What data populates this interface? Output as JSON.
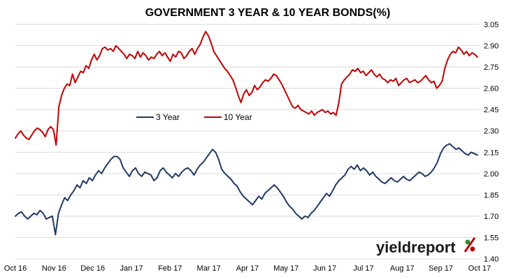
{
  "chart_data": {
    "type": "line",
    "title": "GOVERNMENT 3 YEAR & 10 YEAR BONDS(%)",
    "xlabel": "",
    "ylabel": "",
    "ylim": [
      1.4,
      3.05
    ],
    "y_ticks": [
      "1.40",
      "1.55",
      "1.70",
      "1.85",
      "2.00",
      "2.15",
      "2.30",
      "2.45",
      "2.60",
      "2.75",
      "2.90",
      "3.05"
    ],
    "x_ticks": [
      "Oct 16",
      "Nov 16",
      "Dec 16",
      "Jan 17",
      "Feb 17",
      "Mar 17",
      "Apr 17",
      "May 17",
      "Jun 17",
      "Jul 17",
      "Aug 17",
      "Sep 17",
      "Oct 17"
    ],
    "grid": "horizontal",
    "legend_position": "center-left",
    "series": [
      {
        "name": "10 Year",
        "color": "#c00000",
        "values": [
          2.25,
          2.28,
          2.3,
          2.27,
          2.25,
          2.24,
          2.27,
          2.3,
          2.32,
          2.31,
          2.29,
          2.26,
          2.31,
          2.33,
          2.31,
          2.2,
          2.47,
          2.55,
          2.6,
          2.63,
          2.62,
          2.7,
          2.64,
          2.68,
          2.72,
          2.71,
          2.76,
          2.74,
          2.8,
          2.84,
          2.8,
          2.83,
          2.88,
          2.89,
          2.87,
          2.88,
          2.86,
          2.9,
          2.88,
          2.86,
          2.84,
          2.81,
          2.84,
          2.83,
          2.81,
          2.86,
          2.82,
          2.85,
          2.83,
          2.8,
          2.82,
          2.81,
          2.84,
          2.86,
          2.83,
          2.85,
          2.82,
          2.79,
          2.84,
          2.82,
          2.86,
          2.85,
          2.81,
          2.83,
          2.86,
          2.88,
          2.84,
          2.88,
          2.91,
          2.96,
          3.0,
          2.97,
          2.92,
          2.86,
          2.83,
          2.8,
          2.77,
          2.74,
          2.72,
          2.69,
          2.66,
          2.61,
          2.55,
          2.5,
          2.56,
          2.59,
          2.55,
          2.57,
          2.62,
          2.59,
          2.61,
          2.64,
          2.66,
          2.65,
          2.67,
          2.7,
          2.69,
          2.66,
          2.63,
          2.59,
          2.55,
          2.51,
          2.47,
          2.46,
          2.48,
          2.45,
          2.44,
          2.43,
          2.42,
          2.44,
          2.41,
          2.43,
          2.44,
          2.45,
          2.43,
          2.44,
          2.42,
          2.43,
          2.41,
          2.5,
          2.63,
          2.66,
          2.68,
          2.7,
          2.73,
          2.72,
          2.74,
          2.71,
          2.72,
          2.69,
          2.71,
          2.73,
          2.7,
          2.68,
          2.7,
          2.67,
          2.66,
          2.64,
          2.66,
          2.65,
          2.67,
          2.62,
          2.64,
          2.66,
          2.67,
          2.64,
          2.65,
          2.66,
          2.64,
          2.65,
          2.67,
          2.69,
          2.66,
          2.64,
          2.65,
          2.6,
          2.62,
          2.65,
          2.74,
          2.8,
          2.84,
          2.86,
          2.85,
          2.89,
          2.87,
          2.84,
          2.86,
          2.83,
          2.85,
          2.84,
          2.82
        ]
      },
      {
        "name": "3 Year",
        "color": "#1f3864",
        "values": [
          1.7,
          1.72,
          1.73,
          1.7,
          1.68,
          1.7,
          1.72,
          1.71,
          1.74,
          1.72,
          1.68,
          1.69,
          1.7,
          1.57,
          1.72,
          1.78,
          1.83,
          1.81,
          1.85,
          1.88,
          1.92,
          1.9,
          1.95,
          1.93,
          1.97,
          1.95,
          1.99,
          2.02,
          2.0,
          2.04,
          2.07,
          2.1,
          2.12,
          2.12,
          2.1,
          2.04,
          2.01,
          1.98,
          2.02,
          2.04,
          2.0,
          1.98,
          2.01,
          2.0,
          1.99,
          1.95,
          1.97,
          2.02,
          2.04,
          2.01,
          1.99,
          1.97,
          2.0,
          1.98,
          2.01,
          2.03,
          2.04,
          2.02,
          1.99,
          2.03,
          2.06,
          2.08,
          2.11,
          2.14,
          2.17,
          2.15,
          2.1,
          2.03,
          2.0,
          1.98,
          1.96,
          1.93,
          1.91,
          1.87,
          1.84,
          1.82,
          1.8,
          1.78,
          1.81,
          1.84,
          1.82,
          1.86,
          1.88,
          1.9,
          1.92,
          1.9,
          1.87,
          1.84,
          1.8,
          1.77,
          1.75,
          1.72,
          1.7,
          1.68,
          1.7,
          1.69,
          1.72,
          1.74,
          1.77,
          1.8,
          1.83,
          1.86,
          1.84,
          1.88,
          1.92,
          1.95,
          1.97,
          1.99,
          2.03,
          2.05,
          2.03,
          2.06,
          2.02,
          2.04,
          2.02,
          1.99,
          2.01,
          1.98,
          1.96,
          1.94,
          1.93,
          1.95,
          1.97,
          1.95,
          1.94,
          1.96,
          1.98,
          1.96,
          1.95,
          1.97,
          1.99,
          2.01,
          2.0,
          1.98,
          1.99,
          2.01,
          2.04,
          2.08,
          2.14,
          2.18,
          2.2,
          2.21,
          2.19,
          2.17,
          2.18,
          2.16,
          2.14,
          2.13,
          2.15,
          2.14,
          2.13
        ]
      }
    ]
  },
  "brand": {
    "name_part1": "yield",
    "name_part2": "report",
    "symbol": "%"
  }
}
